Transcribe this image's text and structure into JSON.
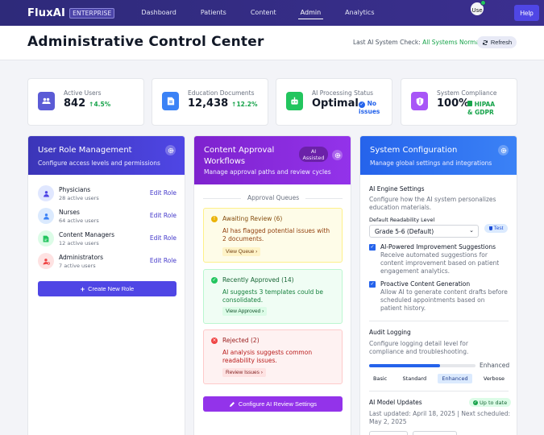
{
  "nav": {
    "brand": "FluxAI",
    "edition": "ENTERPRISE",
    "links": [
      "Dashboard",
      "Patients",
      "Content",
      "Admin",
      "Analytics"
    ],
    "active": "Admin",
    "avatar_alt": "Use",
    "help": "Help"
  },
  "header": {
    "title": "Administrative Control Center",
    "last_check_label": "Last AI System Check:",
    "last_check_value": "All Systems Normal",
    "refresh": "Refresh"
  },
  "stats": [
    {
      "label": "Active Users",
      "value": "842",
      "trend": "4.5%",
      "color": "#5b5bd6"
    },
    {
      "label": "Education Documents",
      "value": "12,438",
      "trend": "12.2%",
      "color": "#3b82f6"
    },
    {
      "label": "AI Processing Status",
      "value": "Optimal",
      "note": "No issues",
      "color": "#22c55e"
    },
    {
      "label": "System Compliance",
      "value": "100%",
      "note": "HIPAA & GDPR",
      "color": "#a855f7"
    }
  ],
  "roles_card": {
    "title": "User Role Management",
    "subtitle": "Configure access levels and permissions",
    "roles": [
      {
        "name": "Physicians",
        "count": "28 active users",
        "edit": "Edit Role"
      },
      {
        "name": "Nurses",
        "count": "64 active users",
        "edit": "Edit Role"
      },
      {
        "name": "Content Managers",
        "count": "12 active users",
        "edit": "Edit Role"
      },
      {
        "name": "Administrators",
        "count": "7 active users",
        "edit": "Edit Role"
      }
    ],
    "create": "Create New Role"
  },
  "approval_card": {
    "title_line1": "Content Approval",
    "title_line2": "Workflows",
    "badge_line1": "AI",
    "badge_line2": "Assisted",
    "subtitle": "Manage approval paths and review cycles",
    "queues_label": "Approval Queues",
    "queues": [
      {
        "title": "Awaiting Review (6)",
        "text": "AI has flagged potential issues with 2 documents.",
        "button": "View Queue"
      },
      {
        "title": "Recently Approved (14)",
        "text": "AI suggests 3 templates could be consolidated.",
        "button": "View Approved"
      },
      {
        "title": "Rejected (2)",
        "text": "AI analysis suggests common readability issues.",
        "button": "Review Issues"
      }
    ],
    "configure": "Configure AI Review Settings"
  },
  "config_card": {
    "title": "System Configuration",
    "subtitle": "Manage global settings and integrations",
    "engine_title": "AI Engine Settings",
    "engine_desc": "Configure how the AI system personalizes education materials.",
    "readability_label": "Default Readability Level",
    "readability_value": "Grade 5-6 (Default)",
    "test": "Test",
    "improve_title": "AI-Powered Improvement Suggestions",
    "improve_desc": "Receive automated suggestions for content improvement based on patient engagement analytics.",
    "proactive_title": "Proactive Content Generation",
    "proactive_desc": "Allow AI to generate content drafts before scheduled appointments based on patient history.",
    "audit_title": "Audit Logging",
    "audit_desc": "Configure logging detail level for compliance and troubleshooting.",
    "audit_level": "Enhanced",
    "audit_fraction": 0.67,
    "audit_options": [
      "Basic",
      "Standard",
      "Enhanced",
      "Verbose"
    ],
    "model_title": "AI Model Updates",
    "model_status": "Up to date",
    "model_desc": "Last updated: April 18, 2025 | Next scheduled: May 2, 2025"
  }
}
